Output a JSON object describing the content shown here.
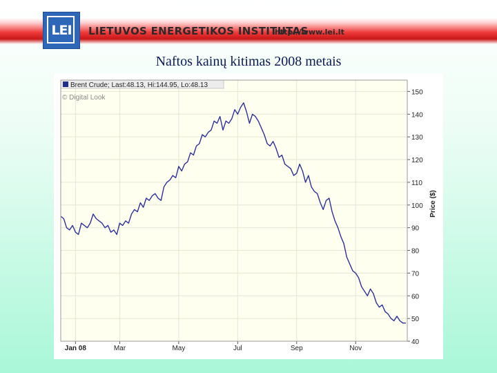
{
  "header": {
    "logo_text": "LEI",
    "institute_name": "LIETUVOS ENERGETIKOS INSTITUTAS",
    "url": "http://www.lei.lt"
  },
  "slide": {
    "title": "Naftos kainų kitimas 2008 metais"
  },
  "colors": {
    "line": "#2b2fa0",
    "plot_bg": "#fffff0",
    "grid": "#e6e6d2",
    "legend_marker": "#1f2f8f"
  },
  "chart_data": {
    "type": "line",
    "legend": "Brent Crude; Last:48.13, Hi:144.95, Lo:48.13",
    "watermark": "© Digital Look",
    "ylabel": "Price ($)",
    "ylim": [
      40,
      155
    ],
    "yticks": [
      40,
      50,
      60,
      70,
      80,
      90,
      100,
      110,
      120,
      130,
      140,
      150
    ],
    "xlim": [
      0,
      11.75
    ],
    "xticks": [
      {
        "pos": 0.5,
        "label": "Jan 08",
        "bold": true
      },
      {
        "pos": 2.0,
        "label": "Mar",
        "bold": false
      },
      {
        "pos": 4.0,
        "label": "May",
        "bold": false
      },
      {
        "pos": 6.0,
        "label": "Jul",
        "bold": false
      },
      {
        "pos": 8.0,
        "label": "Sep",
        "bold": false
      },
      {
        "pos": 10.0,
        "label": "Nov",
        "bold": false
      }
    ],
    "grid": true,
    "legend_position": "top-left",
    "series": [
      {
        "x": [
          0,
          0.1,
          0.2,
          0.3,
          0.4,
          0.5,
          0.6,
          0.7,
          0.8,
          0.9,
          1.0,
          1.1,
          1.2,
          1.3,
          1.4,
          1.5,
          1.6,
          1.7,
          1.8,
          1.9,
          2.0,
          2.1,
          2.2,
          2.3,
          2.4,
          2.5,
          2.6,
          2.7,
          2.8,
          2.9,
          3.0,
          3.1,
          3.2,
          3.3,
          3.4,
          3.5,
          3.6,
          3.7,
          3.8,
          3.9,
          4.0,
          4.1,
          4.2,
          4.3,
          4.4,
          4.5,
          4.6,
          4.7,
          4.8,
          4.9,
          5.0,
          5.1,
          5.2,
          5.3,
          5.4,
          5.5,
          5.6,
          5.7,
          5.8,
          5.9,
          6.0,
          6.1,
          6.2,
          6.3,
          6.4,
          6.5,
          6.6,
          6.7,
          6.8,
          6.9,
          7.0,
          7.1,
          7.2,
          7.3,
          7.4,
          7.5,
          7.6,
          7.7,
          7.8,
          7.9,
          8.0,
          8.1,
          8.2,
          8.3,
          8.4,
          8.5,
          8.6,
          8.7,
          8.8,
          8.9,
          9.0,
          9.1,
          9.2,
          9.3,
          9.4,
          9.5,
          9.6,
          9.7,
          9.8,
          9.9,
          10.0,
          10.1,
          10.2,
          10.3,
          10.4,
          10.5,
          10.6,
          10.7,
          10.8,
          10.9,
          11.0,
          11.1,
          11.2,
          11.3,
          11.4,
          11.5,
          11.6,
          11.7
        ],
        "y": [
          95,
          94,
          90,
          89,
          91,
          88,
          87,
          92,
          91,
          90,
          92,
          96,
          94,
          93,
          92,
          90,
          91,
          88,
          89,
          87,
          92,
          91,
          93,
          92,
          96,
          98,
          97,
          101,
          99,
          103,
          102,
          104,
          105,
          103,
          102,
          108,
          110,
          111,
          113,
          112,
          117,
          115,
          118,
          119,
          123,
          122,
          126,
          127,
          131,
          130,
          132,
          133,
          137,
          136,
          139,
          133,
          137,
          136,
          138,
          142,
          140,
          143,
          145,
          141,
          136,
          140,
          139,
          137,
          134,
          131,
          127,
          126,
          128,
          125,
          121,
          122,
          118,
          117,
          116,
          113,
          114,
          118,
          115,
          110,
          113,
          108,
          106,
          105,
          101,
          98,
          102,
          103,
          97,
          93,
          90,
          86,
          83,
          77,
          74,
          71,
          70,
          68,
          64,
          62,
          60,
          63,
          61,
          57,
          55,
          56,
          53,
          52,
          50,
          49,
          51,
          49,
          48,
          48
        ]
      }
    ]
  }
}
